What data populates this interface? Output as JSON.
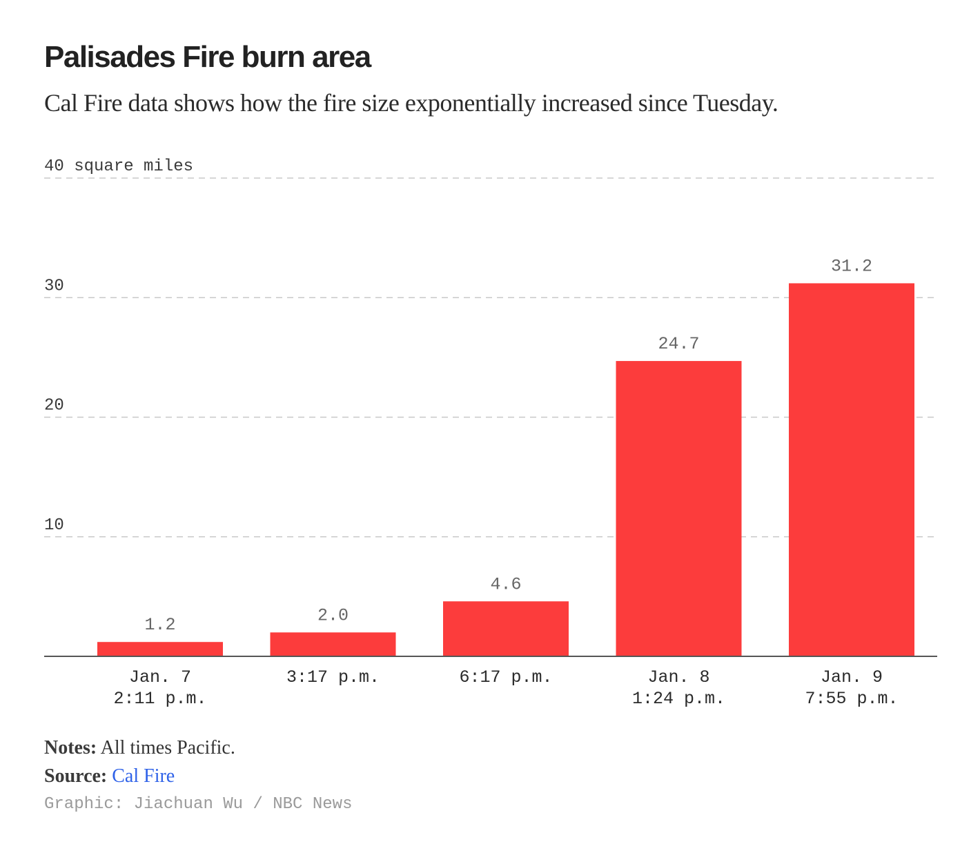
{
  "header": {
    "title": "Palisades Fire burn area",
    "subtitle": "Cal Fire data shows how the fire size exponentially increased since Tuesday."
  },
  "chart_data": {
    "type": "bar",
    "title": "Palisades Fire burn area",
    "subtitle": "Cal Fire data shows how the fire size exponentially increased since Tuesday.",
    "categories": [
      [
        "Jan. 7",
        "2:11 p.m."
      ],
      [
        "3:17 p.m."
      ],
      [
        "6:17 p.m."
      ],
      [
        "Jan. 8",
        "1:24 p.m."
      ],
      [
        "Jan. 9",
        "7:55 p.m."
      ]
    ],
    "values": [
      1.2,
      2.0,
      4.6,
      24.7,
      31.2
    ],
    "value_labels": [
      "1.2",
      "2.0",
      "4.6",
      "24.7",
      "31.2"
    ],
    "ylim": [
      0,
      40
    ],
    "yticks": [
      10,
      20,
      30,
      40
    ],
    "ytick_labels": [
      "10",
      "20",
      "30",
      "40 square miles"
    ],
    "xlabel": "",
    "ylabel": "",
    "grid": true,
    "legend": "none",
    "bar_color": "#fc3c3c"
  },
  "footer": {
    "notes_label": "Notes:",
    "notes_text": "All times Pacific.",
    "source_label": "Source:",
    "source_link": "Cal Fire",
    "credit": "Graphic: Jiachuan Wu / NBC News"
  },
  "colors": {
    "bar": "#fc3c3c",
    "grid": "#c8c8c8",
    "axis": "#555555",
    "link": "#2f62e8"
  }
}
